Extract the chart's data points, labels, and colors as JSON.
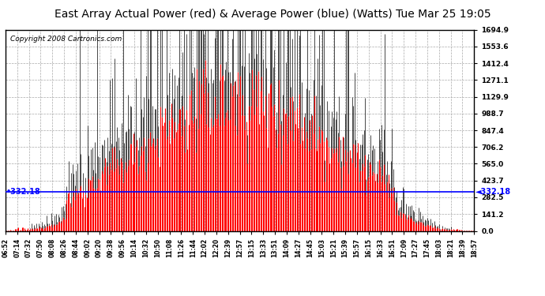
{
  "title": "East Array Actual Power (red) & Average Power (blue) (Watts) Tue Mar 25 19:05",
  "copyright": "Copyright 2008 Cartronics.com",
  "avg_line_value": 332.18,
  "ymax": 1694.9,
  "ymin": 0.0,
  "yticks": [
    0.0,
    141.2,
    282.5,
    423.7,
    565.0,
    706.2,
    847.4,
    988.7,
    1129.9,
    1271.1,
    1412.4,
    1553.6,
    1694.9
  ],
  "xtick_labels": [
    "06:52",
    "07:14",
    "07:32",
    "07:50",
    "08:08",
    "08:26",
    "08:44",
    "09:02",
    "09:20",
    "09:38",
    "09:56",
    "10:14",
    "10:32",
    "10:50",
    "11:08",
    "11:26",
    "11:44",
    "12:02",
    "12:20",
    "12:39",
    "12:57",
    "13:15",
    "13:33",
    "13:51",
    "14:09",
    "14:27",
    "14:45",
    "15:03",
    "15:21",
    "15:39",
    "15:57",
    "16:15",
    "16:33",
    "16:51",
    "17:09",
    "17:27",
    "17:45",
    "18:03",
    "18:21",
    "18:39",
    "18:57"
  ],
  "bg_color": "#ffffff",
  "plot_bg": "#ffffff",
  "grid_color": "#aaaaaa",
  "bar_color": "#ff0000",
  "spike_color": "#000000",
  "avg_color": "#0000ff",
  "title_fontsize": 10,
  "copyright_fontsize": 6.5
}
